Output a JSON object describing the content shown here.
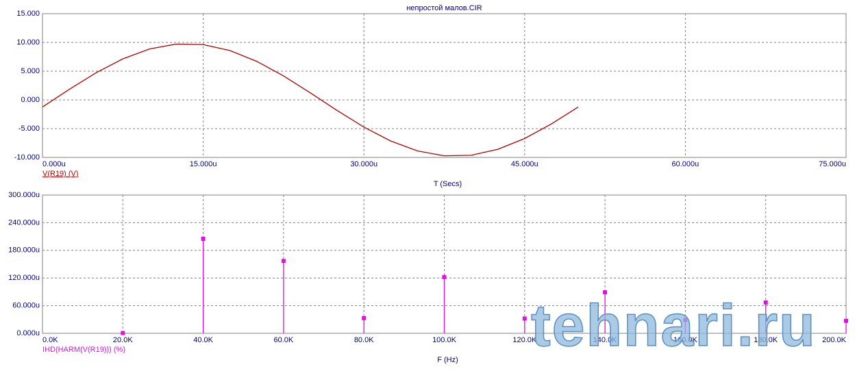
{
  "chart_data": [
    {
      "type": "line",
      "title": "непростой малов.CIR",
      "x_label": "T (Secs)",
      "grid": true,
      "x": [
        0,
        2.5,
        5,
        7.5,
        10,
        12.5,
        15,
        17.5,
        20,
        22.5,
        25,
        27.5,
        30,
        32.5,
        35,
        37.5,
        40,
        42.5,
        45,
        47.5,
        50
      ],
      "series": [
        {
          "name": "V(R19) (V)",
          "color": "#b00000",
          "values": [
            -1.23,
            1.84,
            4.72,
            7.14,
            8.87,
            9.72,
            9.63,
            8.58,
            6.71,
            4.17,
            1.23,
            -1.84,
            -4.72,
            -7.14,
            -8.87,
            -9.72,
            -9.63,
            -8.58,
            -6.71,
            -4.17,
            -1.23
          ]
        }
      ],
      "xlim": [
        0,
        75
      ],
      "xticks": [
        {
          "value": 0,
          "label": "0.000u"
        },
        {
          "value": 15,
          "label": "15.000u"
        },
        {
          "value": 30,
          "label": "30.000u"
        },
        {
          "value": 45,
          "label": "45.000u"
        },
        {
          "value": 60,
          "label": "60.000u"
        },
        {
          "value": 75,
          "label": "75.000u"
        }
      ],
      "ylim": [
        -10,
        15
      ],
      "yticks": [
        {
          "value": -10,
          "label": "-10.000"
        },
        {
          "value": -5,
          "label": "-5.000"
        },
        {
          "value": 0,
          "label": "0.000"
        },
        {
          "value": 5,
          "label": "5.000"
        },
        {
          "value": 10,
          "label": "10.000"
        },
        {
          "value": 15,
          "label": "15.000"
        }
      ]
    },
    {
      "type": "stem",
      "x_label": "F (Hz)",
      "grid": true,
      "x": [
        20,
        40,
        60,
        80,
        100,
        120,
        140,
        160,
        180,
        200
      ],
      "series": [
        {
          "name": "IHD(HARM(V(R19))) (%)",
          "color": "#e010e0",
          "values": [
            0.5,
            205,
            157,
            33,
            122,
            32,
            89,
            29,
            67,
            27
          ]
        }
      ],
      "xlim": [
        0,
        200
      ],
      "xticks": [
        {
          "value": 0,
          "label": "0.0K"
        },
        {
          "value": 20,
          "label": "20.0K"
        },
        {
          "value": 40,
          "label": "40.0K"
        },
        {
          "value": 60,
          "label": "60.0K"
        },
        {
          "value": 80,
          "label": "80.0K"
        },
        {
          "value": 100,
          "label": "100.0K"
        },
        {
          "value": 120,
          "label": "120.0K"
        },
        {
          "value": 140,
          "label": "140.0K"
        },
        {
          "value": 160,
          "label": "160.0K"
        },
        {
          "value": 180,
          "label": "180.0K"
        },
        {
          "value": 200,
          "label": "200.0K"
        }
      ],
      "ylim": [
        0,
        300
      ],
      "yticks": [
        {
          "value": 0,
          "label": "0.000u"
        },
        {
          "value": 60,
          "label": "60.000u"
        },
        {
          "value": 120,
          "label": "120.000u"
        },
        {
          "value": 180,
          "label": "180.000u"
        },
        {
          "value": 240,
          "label": "240.000u"
        },
        {
          "value": 300,
          "label": "300.000u"
        }
      ]
    }
  ],
  "watermark": "tehnari.ru"
}
